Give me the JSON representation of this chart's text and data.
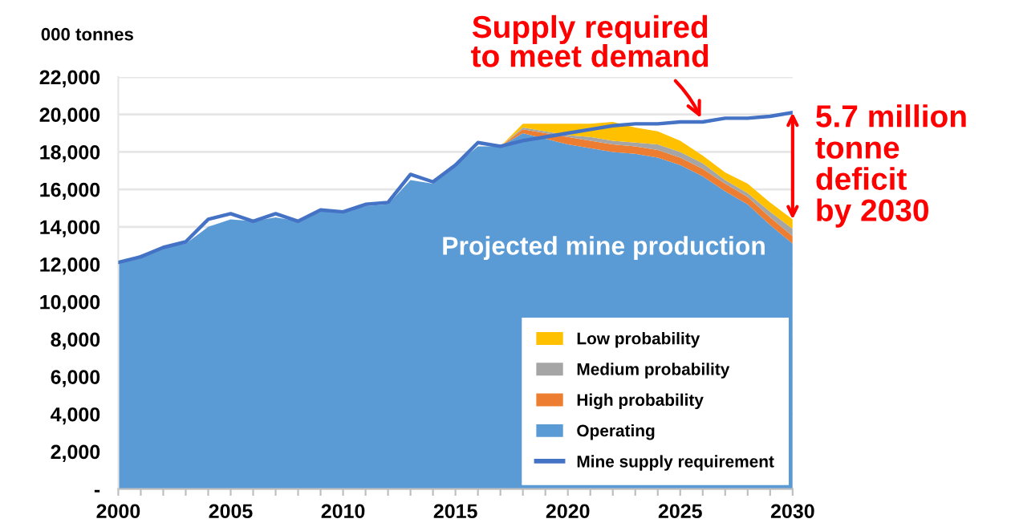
{
  "chart_data": {
    "type": "area",
    "stacked": true,
    "ylabel": "000 tonnes",
    "x": [
      2000,
      2001,
      2002,
      2003,
      2004,
      2005,
      2006,
      2007,
      2008,
      2009,
      2010,
      2011,
      2012,
      2013,
      2014,
      2015,
      2016,
      2017,
      2018,
      2019,
      2020,
      2021,
      2022,
      2023,
      2024,
      2025,
      2026,
      2027,
      2028,
      2029,
      2030
    ],
    "series": [
      {
        "name": "Operating",
        "color": "#5b9bd5",
        "values": [
          12000,
          12500,
          12900,
          13100,
          14000,
          14400,
          14300,
          14500,
          14300,
          14800,
          14800,
          15100,
          15200,
          16500,
          16300,
          17300,
          18300,
          18300,
          19000,
          18700,
          18400,
          18200,
          18000,
          17900,
          17700,
          17300,
          16700,
          15900,
          15200,
          14100,
          13100
        ]
      },
      {
        "name": "High probability",
        "color": "#ed7d31",
        "values": [
          0,
          0,
          0,
          0,
          0,
          0,
          0,
          0,
          0,
          0,
          0,
          0,
          0,
          0,
          0,
          0,
          0,
          0,
          200,
          300,
          400,
          400,
          400,
          400,
          400,
          400,
          400,
          400,
          400,
          400,
          400
        ]
      },
      {
        "name": "Medium probability",
        "color": "#a5a5a5",
        "values": [
          0,
          0,
          0,
          0,
          0,
          0,
          0,
          0,
          0,
          0,
          0,
          0,
          0,
          0,
          0,
          0,
          0,
          0,
          100,
          100,
          100,
          200,
          200,
          200,
          300,
          300,
          300,
          200,
          200,
          300,
          400
        ]
      },
      {
        "name": "Low probability",
        "color": "#ffc000",
        "values": [
          0,
          0,
          0,
          0,
          0,
          0,
          0,
          0,
          0,
          0,
          0,
          0,
          0,
          0,
          0,
          0,
          0,
          0,
          200,
          400,
          600,
          700,
          1000,
          800,
          700,
          600,
          400,
          400,
          500,
          500,
          500
        ]
      },
      {
        "name": "Mine supply requirement",
        "type": "line",
        "color": "#4472c4",
        "values": [
          12100,
          12400,
          12900,
          13200,
          14400,
          14700,
          14300,
          14700,
          14300,
          14900,
          14800,
          15200,
          15300,
          16800,
          16400,
          17300,
          18500,
          18300,
          18600,
          18800,
          19000,
          19200,
          19400,
          19500,
          19500,
          19600,
          19600,
          19800,
          19800,
          19900,
          20100
        ]
      }
    ],
    "xlim": [
      2000,
      2030
    ],
    "xticks": [
      2000,
      {
        "value": 2001,
        "label": null
      },
      {
        "value": 2002,
        "label": null
      },
      {
        "value": 2003,
        "label": null
      },
      {
        "value": 2004,
        "label": null
      },
      2005,
      {
        "value": 2006,
        "label": null
      },
      {
        "value": 2007,
        "label": null
      },
      {
        "value": 2008,
        "label": null
      },
      {
        "value": 2009,
        "label": null
      },
      2010,
      {
        "value": 2011,
        "label": null
      },
      {
        "value": 2012,
        "label": null
      },
      {
        "value": 2013,
        "label": null
      },
      {
        "value": 2014,
        "label": null
      },
      2015,
      {
        "value": 2016,
        "label": null
      },
      {
        "value": 2017,
        "label": null
      },
      {
        "value": 2018,
        "label": null
      },
      {
        "value": 2019,
        "label": null
      },
      2020,
      {
        "value": 2021,
        "label": null
      },
      {
        "value": 2022,
        "label": null
      },
      {
        "value": 2023,
        "label": null
      },
      {
        "value": 2024,
        "label": null
      },
      2025,
      {
        "value": 2026,
        "label": null
      },
      {
        "value": 2027,
        "label": null
      },
      {
        "value": 2028,
        "label": null
      },
      {
        "value": 2029,
        "label": null
      },
      2030
    ],
    "ylim": [
      0,
      22000
    ],
    "yticks": [
      {
        "value": 0,
        "label": "-"
      },
      {
        "value": 2000,
        "label": "2,000"
      },
      {
        "value": 4000,
        "label": "4,000"
      },
      {
        "value": 6000,
        "label": "6,000"
      },
      {
        "value": 8000,
        "label": "8,000"
      },
      {
        "value": 10000,
        "label": "10,000"
      },
      {
        "value": 12000,
        "label": "12,000"
      },
      {
        "value": 14000,
        "label": "14,000"
      },
      {
        "value": 16000,
        "label": "16,000"
      },
      {
        "value": 18000,
        "label": "18,000"
      },
      {
        "value": 20000,
        "label": "20,000"
      },
      {
        "value": 22000,
        "label": "22,000"
      }
    ],
    "grid": "y",
    "legend": "bottom right",
    "annotations": [
      {
        "text": "Supply required\nto meet demand",
        "x": 2026,
        "y": 19600
      },
      {
        "text": "5.7 million\ntonne\ndeficit\nby 2030",
        "x": 2030,
        "y": 20100
      },
      "Projected mine production"
    ]
  }
}
